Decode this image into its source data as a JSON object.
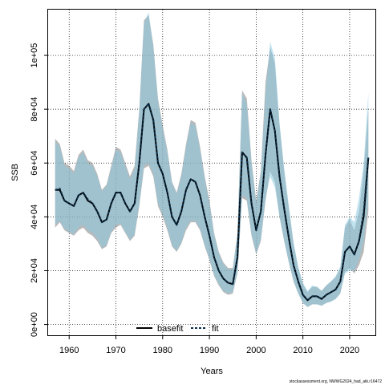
{
  "chart_data": {
    "type": "line",
    "title": "",
    "xlabel": "Years",
    "ylabel": "SSB",
    "xlim": [
      1955.5,
      2025.5
    ],
    "ylim": [
      -4000,
      117000
    ],
    "xticks": [
      1960,
      1970,
      1980,
      1990,
      2000,
      2010,
      2020
    ],
    "xtick_labels": [
      "1960",
      "1970",
      "1980",
      "1990",
      "2000",
      "2010",
      "2020"
    ],
    "yticks": [
      0,
      20000,
      40000,
      60000,
      80000,
      100000
    ],
    "ytick_labels": [
      "0e+00",
      "2e+04",
      "4e+04",
      "6e+04",
      "8e+04",
      "1e+05"
    ],
    "grid": true,
    "legend_position": "bottom-center",
    "x": [
      1957,
      1958,
      1959,
      1960,
      1961,
      1962,
      1963,
      1964,
      1965,
      1966,
      1967,
      1968,
      1969,
      1970,
      1971,
      1972,
      1973,
      1974,
      1975,
      1976,
      1977,
      1978,
      1979,
      1980,
      1981,
      1982,
      1983,
      1984,
      1985,
      1986,
      1987,
      1988,
      1989,
      1990,
      1991,
      1992,
      1993,
      1994,
      1995,
      1996,
      1997,
      1998,
      1999,
      2000,
      2001,
      2002,
      2003,
      2004,
      2005,
      2006,
      2007,
      2008,
      2009,
      2010,
      2011,
      2012,
      2013,
      2014,
      2015,
      2016,
      2017,
      2018,
      2019,
      2020,
      2021,
      2022,
      2023,
      2024
    ],
    "series": [
      {
        "name": "basefit",
        "color": "#000000",
        "band_color": "#7f7f7f",
        "values": [
          50000,
          50000,
          46000,
          45000,
          44000,
          48000,
          49000,
          46000,
          45000,
          42000,
          38000,
          39000,
          45000,
          49000,
          49000,
          45000,
          42000,
          45000,
          60000,
          80000,
          82000,
          76000,
          60000,
          56000,
          49000,
          40000,
          37000,
          42000,
          50000,
          54000,
          53000,
          48000,
          40000,
          33000,
          25000,
          20000,
          17000,
          15500,
          15000,
          25000,
          64000,
          62000,
          45000,
          35000,
          42000,
          63000,
          80000,
          72000,
          55000,
          43000,
          32000,
          22000,
          16000,
          11000,
          9000,
          10500,
          10500,
          9500,
          11000,
          12000,
          13000,
          16000,
          27000,
          29000,
          26000,
          31000,
          40000,
          62000
        ],
        "lower": [
          36000,
          38000,
          35000,
          34000,
          33000,
          35000,
          36000,
          34000,
          33000,
          31000,
          28000,
          29000,
          34000,
          36000,
          37000,
          34000,
          31000,
          33000,
          44000,
          58000,
          59000,
          55000,
          44000,
          40000,
          35000,
          29000,
          27000,
          30000,
          35000,
          38000,
          38000,
          35000,
          29000,
          24000,
          18000,
          14500,
          12000,
          11000,
          11500,
          19000,
          47000,
          46000,
          33000,
          26000,
          31000,
          46000,
          57000,
          53000,
          40000,
          31000,
          23000,
          16000,
          11500,
          8000,
          6500,
          7500,
          7500,
          7000,
          8000,
          8500,
          9500,
          11500,
          19500,
          21000,
          19000,
          22000,
          27000,
          42000
        ],
        "upper": [
          69000,
          67000,
          60000,
          59000,
          57000,
          63000,
          65000,
          61000,
          60000,
          56000,
          50000,
          52000,
          59000,
          66000,
          65000,
          60000,
          55000,
          59000,
          80000,
          113000,
          115000,
          104000,
          84000,
          74000,
          65000,
          53000,
          49000,
          56000,
          67000,
          76000,
          75000,
          66000,
          55000,
          46000,
          34000,
          27000,
          23000,
          21000,
          21000,
          34000,
          87000,
          84000,
          61000,
          46000,
          57000,
          90000,
          103000,
          97000,
          74000,
          57000,
          43000,
          30000,
          21000,
          15000,
          12000,
          14000,
          14000,
          12500,
          14500,
          16000,
          17500,
          21000,
          36000,
          39000,
          35000,
          42000,
          57000,
          80000
        ]
      },
      {
        "name": "fit",
        "color": "#0b2f4a",
        "band_color": "#8ccbe2",
        "values": [
          50000,
          50500,
          46000,
          45000,
          44000,
          48000,
          49000,
          46500,
          45000,
          42000,
          38000,
          39000,
          45000,
          49000,
          49000,
          45000,
          42000,
          45000,
          60000,
          80000,
          82000,
          76000,
          60000,
          56000,
          49000,
          40000,
          37000,
          42000,
          50000,
          54000,
          53000,
          48000,
          40000,
          33000,
          25000,
          20000,
          17000,
          15500,
          15000,
          25000,
          64000,
          62000,
          45000,
          35000,
          42000,
          63000,
          80000,
          72000,
          55000,
          43000,
          32000,
          22000,
          16000,
          11000,
          9000,
          10500,
          10500,
          9500,
          11000,
          12000,
          13000,
          16000,
          27000,
          29000,
          26000,
          31000,
          42000,
          62000
        ],
        "lower": [
          37000,
          38500,
          35500,
          34500,
          33500,
          36000,
          37000,
          35000,
          34000,
          32000,
          28500,
          29500,
          34500,
          37000,
          37500,
          34500,
          31500,
          33500,
          45000,
          59000,
          60000,
          56000,
          45000,
          41000,
          36000,
          29500,
          27500,
          30500,
          36000,
          38500,
          38500,
          35500,
          29500,
          24500,
          18500,
          15000,
          12500,
          11500,
          12000,
          19500,
          48000,
          47000,
          33500,
          26500,
          31500,
          47000,
          55000,
          51000,
          40000,
          31000,
          23000,
          16000,
          11500,
          8000,
          6500,
          7500,
          7500,
          7000,
          8000,
          8500,
          9500,
          11500,
          19000,
          20000,
          20000,
          24000,
          31000,
          46000
        ],
        "upper": [
          68000,
          66000,
          59000,
          58000,
          56000,
          62000,
          64000,
          60000,
          59000,
          55000,
          49500,
          51500,
          58000,
          65000,
          64000,
          59000,
          54000,
          58000,
          79000,
          112000,
          116000,
          103000,
          83000,
          73000,
          64000,
          52500,
          48500,
          55000,
          66000,
          75000,
          74000,
          65000,
          54000,
          45000,
          33500,
          26500,
          22500,
          20500,
          20500,
          33500,
          86000,
          82000,
          60000,
          45000,
          56000,
          86000,
          105000,
          99000,
          75000,
          58000,
          44000,
          30500,
          21500,
          15500,
          12500,
          14500,
          14000,
          12500,
          14500,
          16000,
          18000,
          21500,
          37000,
          40000,
          38000,
          47000,
          60000,
          86000
        ]
      }
    ],
    "footnote": "stockassessment.org, NWWG2024_had_atk.r16472"
  }
}
